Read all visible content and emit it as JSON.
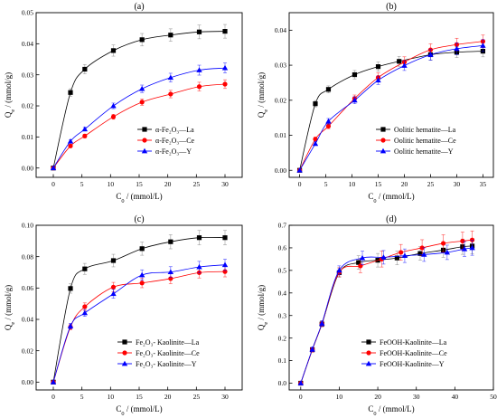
{
  "chart_data": [
    {
      "type": "scatter",
      "panel_label": "(a)",
      "xlabel": "C_0 / (mmol/L)",
      "ylabel": "Q_e / (mmol/g)",
      "xlim": [
        -3,
        33
      ],
      "ylim": [
        -0.003,
        0.05
      ],
      "xticks": [
        "0",
        "5",
        "10",
        "15",
        "20",
        "25",
        "30"
      ],
      "yticks": [
        "0.00",
        "0.01",
        "0.02",
        "0.03",
        "0.04",
        "0.05"
      ],
      "xtick_values": [
        0,
        5,
        10,
        15,
        20,
        25,
        30
      ],
      "ytick_values": [
        0,
        0.01,
        0.02,
        0.03,
        0.04,
        0.05
      ],
      "legend_position": "bottom-right",
      "series": [
        {
          "name": "α-Fe₂O₃—La",
          "color": "#000000",
          "marker": "square",
          "x": [
            0,
            3,
            5.5,
            10.5,
            15.5,
            20.5,
            25.5,
            30
          ],
          "y": [
            0,
            0.0243,
            0.0318,
            0.0378,
            0.0413,
            0.0428,
            0.0438,
            0.044
          ],
          "err": [
            0,
            0.0012,
            0.0015,
            0.0018,
            0.002,
            0.002,
            0.0022,
            0.0022
          ]
        },
        {
          "name": "α-Fe₂O₃—Ce",
          "color": "#ff0000",
          "marker": "circle",
          "x": [
            0,
            3,
            5.5,
            10.5,
            15.5,
            20.5,
            25.5,
            30
          ],
          "y": [
            0,
            0.0071,
            0.0103,
            0.0165,
            0.0212,
            0.0238,
            0.0262,
            0.027
          ],
          "err": [
            0,
            0.0005,
            0.0006,
            0.0008,
            0.001,
            0.0012,
            0.0014,
            0.0014
          ]
        },
        {
          "name": "α-Fe₂O₃—Y",
          "color": "#0000ff",
          "marker": "triangle",
          "x": [
            0,
            3,
            5.5,
            10.5,
            15.5,
            20.5,
            25.5,
            30
          ],
          "y": [
            0,
            0.0086,
            0.0125,
            0.02,
            0.0255,
            0.0291,
            0.0315,
            0.0322
          ],
          "err": [
            0,
            0.0005,
            0.0006,
            0.0009,
            0.0012,
            0.0014,
            0.0016,
            0.0016
          ]
        }
      ]
    },
    {
      "type": "scatter",
      "panel_label": "(b)",
      "xlabel": "C_0 / (mmol/L)",
      "ylabel": "Q_e / (mmol/g)",
      "xlim": [
        -2,
        37
      ],
      "ylim": [
        -0.002,
        0.045
      ],
      "xticks": [
        "0",
        "5",
        "10",
        "15",
        "20",
        "25",
        "30",
        "35"
      ],
      "yticks": [
        "0.00",
        "0.01",
        "0.02",
        "0.03",
        "0.04"
      ],
      "xtick_values": [
        0,
        5,
        10,
        15,
        20,
        25,
        30,
        35
      ],
      "ytick_values": [
        0,
        0.01,
        0.02,
        0.03,
        0.04
      ],
      "legend_position": "bottom-right",
      "series": [
        {
          "name": "Oolitic hematite—La",
          "color": "#000000",
          "marker": "square",
          "x": [
            0,
            3,
            5.5,
            10.5,
            15,
            19,
            25,
            30,
            35
          ],
          "y": [
            0,
            0.019,
            0.0231,
            0.0273,
            0.0296,
            0.0311,
            0.033,
            0.0337,
            0.034
          ],
          "err": [
            0,
            0.0009,
            0.001,
            0.0012,
            0.0013,
            0.0014,
            0.0015,
            0.0015,
            0.0016
          ]
        },
        {
          "name": "Oolitic hematite—Ce",
          "color": "#ff0000",
          "marker": "circle",
          "x": [
            0,
            3,
            5.5,
            10.5,
            15,
            20,
            25,
            30,
            35
          ],
          "y": [
            0,
            0.0089,
            0.0126,
            0.0205,
            0.0265,
            0.0309,
            0.0344,
            0.0359,
            0.0368
          ],
          "err": [
            0,
            0.0006,
            0.0007,
            0.001,
            0.0013,
            0.0015,
            0.0017,
            0.0018,
            0.0018
          ]
        },
        {
          "name": "Oolitic hematite—Y",
          "color": "#0000ff",
          "marker": "triangle",
          "x": [
            0,
            3,
            5.5,
            10.5,
            15,
            20,
            25,
            30,
            35
          ],
          "y": [
            0,
            0.0076,
            0.014,
            0.02,
            0.0257,
            0.0299,
            0.033,
            0.0347,
            0.0356
          ],
          "err": [
            0,
            0.0005,
            0.0008,
            0.001,
            0.0012,
            0.0014,
            0.0016,
            0.0017,
            0.0017
          ]
        }
      ]
    },
    {
      "type": "scatter",
      "panel_label": "(c)",
      "xlabel": "C_0 / (mmol/L)",
      "ylabel": "Q_e / (mmol/g)",
      "xlim": [
        -3,
        33
      ],
      "ylim": [
        -0.005,
        0.1
      ],
      "xticks": [
        "0",
        "5",
        "10",
        "15",
        "20",
        "25",
        "30"
      ],
      "yticks": [
        "0.00",
        "0.02",
        "0.04",
        "0.06",
        "0.08",
        "0.10"
      ],
      "xtick_values": [
        0,
        5,
        10,
        15,
        20,
        25,
        30
      ],
      "ytick_values": [
        0,
        0.02,
        0.04,
        0.06,
        0.08,
        0.1
      ],
      "legend_position": "bottom-right",
      "series": [
        {
          "name": "Fe₂O₃- Kaolinite—La",
          "color": "#000000",
          "marker": "square",
          "x": [
            0,
            3,
            5.5,
            10.5,
            15.5,
            20.5,
            25.5,
            30
          ],
          "y": [
            0,
            0.0597,
            0.0722,
            0.0775,
            0.0851,
            0.0895,
            0.0921,
            0.0921
          ],
          "err": [
            0,
            0.003,
            0.0035,
            0.004,
            0.0042,
            0.0045,
            0.0046,
            0.0046
          ]
        },
        {
          "name": "Fe₂O₃- Kaolinite—Ce",
          "color": "#ff0000",
          "marker": "circle",
          "x": [
            0,
            3,
            5.5,
            10.5,
            15.5,
            20.5,
            25.5,
            30
          ],
          "y": [
            0,
            0.0352,
            0.0481,
            0.0606,
            0.0632,
            0.066,
            0.0698,
            0.0705
          ],
          "err": [
            0,
            0.0018,
            0.0024,
            0.003,
            0.003,
            0.0032,
            0.0034,
            0.0034
          ]
        },
        {
          "name": "Fe₂O₃- Kaolinite—Y",
          "color": "#0000ff",
          "marker": "triangle",
          "x": [
            0,
            3,
            5.5,
            10.5,
            15.5,
            20.5,
            25.5,
            30
          ],
          "y": [
            0,
            0.0357,
            0.0441,
            0.0563,
            0.0683,
            0.0702,
            0.0734,
            0.0748
          ],
          "err": [
            0,
            0.0018,
            0.0022,
            0.0028,
            0.0033,
            0.0034,
            0.0036,
            0.0036
          ]
        }
      ]
    },
    {
      "type": "scatter",
      "panel_label": "(d)",
      "xlabel": "C_0 / (mmol/L)",
      "ylabel": "Q_e / (mmol/g)",
      "xlim": [
        -3,
        50
      ],
      "ylim": [
        -0.03,
        0.7
      ],
      "xticks": [
        "0",
        "10",
        "20",
        "30",
        "40",
        "50"
      ],
      "yticks": [
        "0.0",
        "0.1",
        "0.2",
        "0.3",
        "0.4",
        "0.5",
        "0.6",
        "0.7"
      ],
      "xtick_values": [
        0,
        10,
        20,
        30,
        40,
        50
      ],
      "ytick_values": [
        0,
        0.1,
        0.2,
        0.3,
        0.4,
        0.5,
        0.6,
        0.7
      ],
      "legend_position": "bottom-right",
      "series": [
        {
          "name": "FeOOH-Kaolinite—La",
          "color": "#000000",
          "marker": "square",
          "x": [
            0,
            3,
            5.5,
            10,
            15,
            20,
            25,
            31,
            37,
            42,
            44.5
          ],
          "y": [
            0,
            0.148,
            0.262,
            0.49,
            0.535,
            0.545,
            0.555,
            0.575,
            0.59,
            0.605,
            0.608
          ],
          "err": [
            0,
            0.01,
            0.012,
            0.02,
            0.03,
            0.03,
            0.03,
            0.03,
            0.032,
            0.034,
            0.034
          ]
        },
        {
          "name": "FeOOH-Kaolinite—Ce",
          "color": "#ff0000",
          "marker": "circle",
          "x": [
            0,
            3,
            5.5,
            10,
            15.5,
            21,
            26,
            31.5,
            37,
            42,
            44.5
          ],
          "y": [
            0,
            0.148,
            0.263,
            0.492,
            0.52,
            0.55,
            0.58,
            0.6,
            0.62,
            0.63,
            0.635
          ],
          "err": [
            0,
            0.01,
            0.012,
            0.02,
            0.03,
            0.035,
            0.035,
            0.036,
            0.038,
            0.04,
            0.04
          ]
        },
        {
          "name": "FeOOH-Kaolinite—Y",
          "color": "#0000ff",
          "marker": "triangle",
          "x": [
            0,
            3,
            5.5,
            10,
            16,
            21.5,
            27,
            32,
            38,
            42.5,
            44.5
          ],
          "y": [
            0,
            0.15,
            0.265,
            0.5,
            0.555,
            0.558,
            0.565,
            0.57,
            0.58,
            0.595,
            0.6
          ],
          "err": [
            0,
            0.01,
            0.012,
            0.02,
            0.03,
            0.03,
            0.03,
            0.03,
            0.032,
            0.033,
            0.033
          ]
        }
      ]
    }
  ]
}
